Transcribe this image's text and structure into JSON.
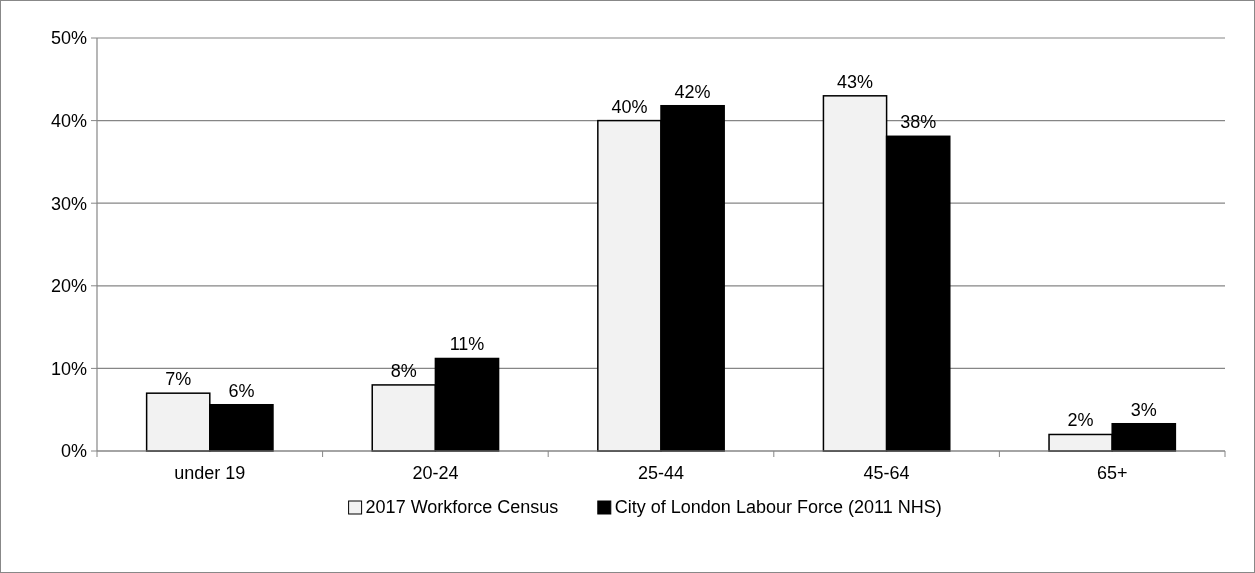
{
  "chart_data": {
    "type": "bar",
    "categories": [
      "under 19",
      "20-24",
      "25-44",
      "45-64",
      "65+"
    ],
    "series": [
      {
        "name": "2017 Workforce Census",
        "color": "#f2f2f2",
        "values": [
          7,
          8,
          40,
          43,
          2
        ],
        "value_labels": [
          "7%",
          "8%",
          "40%",
          "43%",
          "2%"
        ]
      },
      {
        "name": "City of London Labour Force (2011 NHS)",
        "color": "#000000",
        "values": [
          5.6,
          11.2,
          41.8,
          38.1,
          3.3
        ],
        "value_labels": [
          "6%",
          "11%",
          "42%",
          "38%",
          "3%"
        ]
      }
    ],
    "ylim": [
      0,
      50
    ],
    "yticks": [
      {
        "value": 0,
        "label": "0%"
      },
      {
        "value": 10,
        "label": "10%"
      },
      {
        "value": 20,
        "label": "20%"
      },
      {
        "value": 30,
        "label": "30%"
      },
      {
        "value": 40,
        "label": "40%"
      },
      {
        "value": 50,
        "label": "50%"
      }
    ],
    "grid": "y",
    "legend": "bottom"
  }
}
